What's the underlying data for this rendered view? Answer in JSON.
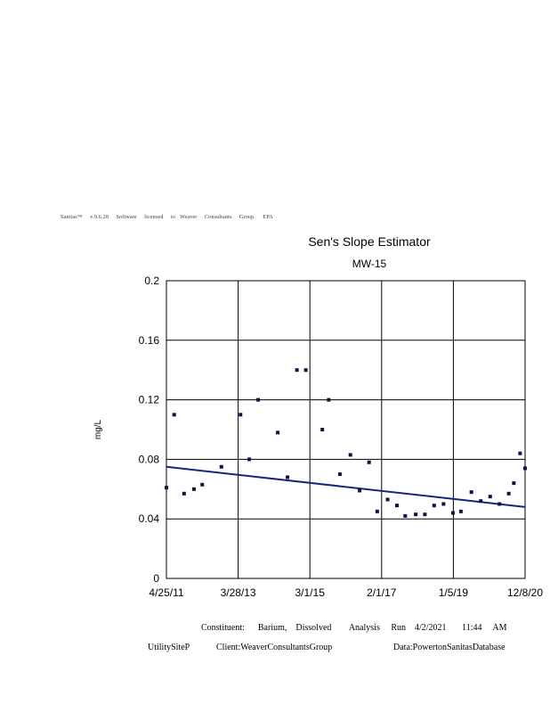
{
  "header": {
    "text": "Sanitas™     v.9.6.28     Software     licensed     to   Weaver     Consultants     Group.     EPA"
  },
  "chart_data": {
    "type": "scatter",
    "title": "Sen's Slope Estimator",
    "subtitle": "MW-15",
    "ylabel": "mg/L",
    "xlabel": "",
    "ylim": [
      0,
      0.2
    ],
    "yticks": [
      "0",
      "0.04",
      "0.08",
      "0.12",
      "0.16",
      "0.2"
    ],
    "xlim": [
      "2011-04-25",
      "2020-12-08"
    ],
    "xtick_labels": [
      "4/25/11",
      "3/28/13",
      "3/1/15",
      "2/1/17",
      "1/5/19",
      "12/8/20"
    ],
    "grid": true,
    "points": [
      {
        "x": "2011-04-25",
        "y": 0.061
      },
      {
        "x": "2011-07-10",
        "y": 0.11
      },
      {
        "x": "2011-10-15",
        "y": 0.057
      },
      {
        "x": "2012-01-20",
        "y": 0.06
      },
      {
        "x": "2012-04-10",
        "y": 0.063
      },
      {
        "x": "2012-10-15",
        "y": 0.075
      },
      {
        "x": "2013-04-20",
        "y": 0.11
      },
      {
        "x": "2013-07-15",
        "y": 0.08
      },
      {
        "x": "2013-10-10",
        "y": 0.12
      },
      {
        "x": "2014-04-20",
        "y": 0.098
      },
      {
        "x": "2014-07-25",
        "y": 0.068
      },
      {
        "x": "2014-10-25",
        "y": 0.14
      },
      {
        "x": "2015-01-20",
        "y": 0.14
      },
      {
        "x": "2015-07-01",
        "y": 0.1
      },
      {
        "x": "2015-09-01",
        "y": 0.12
      },
      {
        "x": "2015-12-20",
        "y": 0.07
      },
      {
        "x": "2016-04-01",
        "y": 0.083
      },
      {
        "x": "2016-07-01",
        "y": 0.059
      },
      {
        "x": "2016-10-01",
        "y": 0.078
      },
      {
        "x": "2016-12-20",
        "y": 0.045
      },
      {
        "x": "2017-04-01",
        "y": 0.053
      },
      {
        "x": "2017-07-01",
        "y": 0.049
      },
      {
        "x": "2017-09-20",
        "y": 0.042
      },
      {
        "x": "2018-01-01",
        "y": 0.043
      },
      {
        "x": "2018-04-01",
        "y": 0.043
      },
      {
        "x": "2018-07-01",
        "y": 0.049
      },
      {
        "x": "2018-10-01",
        "y": 0.05
      },
      {
        "x": "2019-01-01",
        "y": 0.044
      },
      {
        "x": "2019-03-20",
        "y": 0.045
      },
      {
        "x": "2019-07-01",
        "y": 0.058
      },
      {
        "x": "2019-10-01",
        "y": 0.052
      },
      {
        "x": "2020-01-01",
        "y": 0.055
      },
      {
        "x": "2020-04-01",
        "y": 0.05
      },
      {
        "x": "2020-07-01",
        "y": 0.057
      },
      {
        "x": "2020-08-20",
        "y": 0.064
      },
      {
        "x": "2020-10-20",
        "y": 0.084
      },
      {
        "x": "2020-12-08",
        "y": 0.074
      }
    ],
    "trend_line": {
      "start": {
        "x": "2011-04-25",
        "y": 0.075
      },
      "end": {
        "x": "2020-12-08",
        "y": 0.048
      },
      "color": "#1a237e"
    },
    "point_color": "#0d1640"
  },
  "footer": {
    "constituent": "Constituent:      Barium,    Dissolved        Analysis     Run    4/2/2021       11:44     AM",
    "site": "UtilitySiteP",
    "client": "Client:WeaverConsultantsGroup",
    "data": "Data:PowertonSanitasDatabase"
  }
}
